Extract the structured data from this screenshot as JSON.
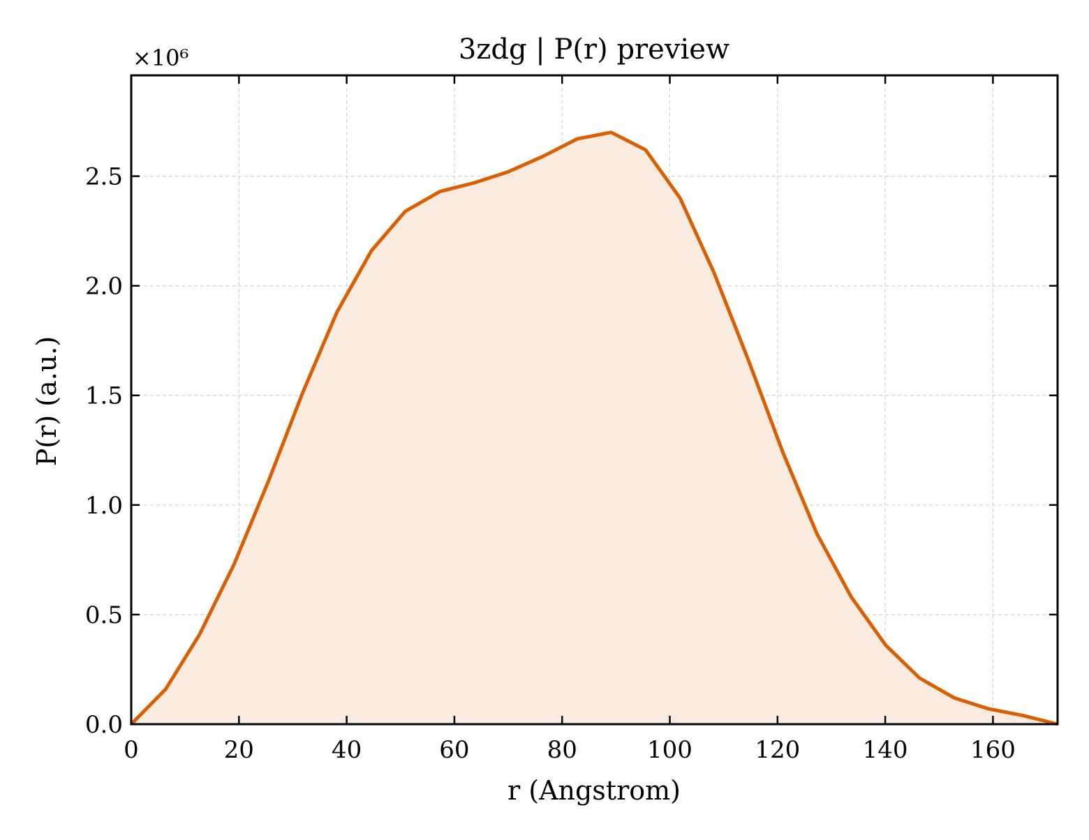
{
  "chart_data": {
    "type": "area",
    "title": "3zdg | P(r) preview",
    "xlabel": "r (Angstrom)",
    "ylabel": "P(r) (a.u.)",
    "y_multiplier_label": "×10⁶",
    "y_scale_factor": 1000000,
    "xlim": [
      0,
      172
    ],
    "ylim": [
      0,
      2.96
    ],
    "x_ticks": [
      0,
      20,
      40,
      60,
      80,
      100,
      120,
      140,
      160
    ],
    "y_ticks": [
      0.0,
      0.5,
      1.0,
      1.5,
      2.0,
      2.5
    ],
    "x_tick_labels": [
      "0",
      "20",
      "40",
      "60",
      "80",
      "100",
      "120",
      "140",
      "160"
    ],
    "y_tick_labels": [
      "0.0",
      "0.5",
      "1.0",
      "1.5",
      "2.0",
      "2.5"
    ],
    "grid": true,
    "line_color": "#d95f02",
    "fill_color": "#f9ebe0",
    "series": [
      {
        "x": [
          0,
          6.4,
          12.7,
          19.1,
          25.5,
          31.8,
          38.2,
          44.6,
          50.9,
          57.3,
          63.7,
          70.0,
          76.4,
          82.8,
          89.1,
          95.5,
          101.9,
          108.2,
          114.6,
          121.0,
          127.3,
          133.7,
          140.1,
          146.4,
          152.8,
          159.2,
          165.5,
          172.0
        ],
        "y": [
          0.0,
          0.16,
          0.41,
          0.73,
          1.11,
          1.51,
          1.88,
          2.16,
          2.34,
          2.43,
          2.47,
          2.52,
          2.59,
          2.67,
          2.7,
          2.62,
          2.4,
          2.06,
          1.66,
          1.24,
          0.87,
          0.58,
          0.36,
          0.21,
          0.12,
          0.07,
          0.04,
          0.0
        ]
      }
    ]
  }
}
